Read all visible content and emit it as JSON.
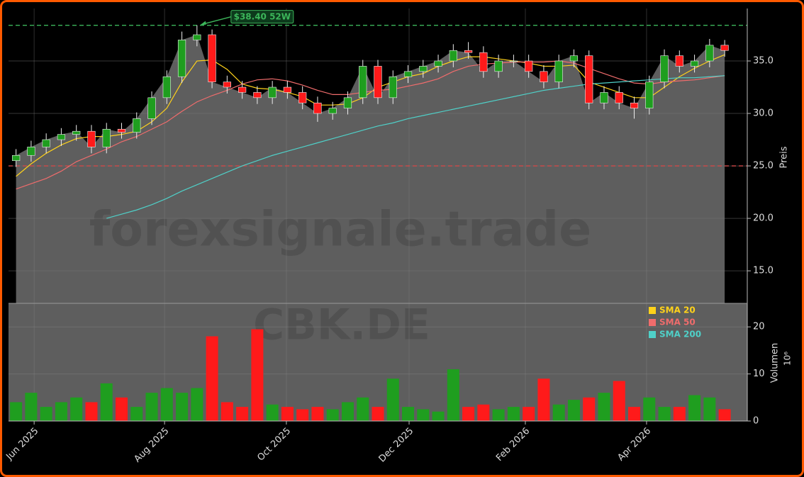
{
  "chart_data": {
    "type": "candlestick",
    "watermark": "forexsignale.trade",
    "symbol": "CBK.DE",
    "ylabel": "Preis",
    "volume_label": "Volumen",
    "volume_scale": "10⁶",
    "categories": [
      null,
      null,
      null,
      null,
      null,
      null,
      null,
      null,
      null,
      null,
      null,
      null,
      null,
      null,
      null,
      null,
      null,
      null,
      null,
      null,
      null,
      null,
      null,
      null,
      null,
      null,
      null,
      null,
      null,
      null,
      null,
      null,
      null,
      null,
      null,
      null,
      null,
      null,
      null,
      null,
      null,
      null,
      null,
      null,
      null,
      null,
      null,
      null
    ],
    "open": [
      25.5,
      26.0,
      26.8,
      27.5,
      28.0,
      28.3,
      26.8,
      28.5,
      28.2,
      29.5,
      31.5,
      33.5,
      37.0,
      37.5,
      33.0,
      32.5,
      32.0,
      31.5,
      32.5,
      32.0,
      31.0,
      30.0,
      30.5,
      31.5,
      34.5,
      31.5,
      33.5,
      34.0,
      34.5,
      35.0,
      36.0,
      35.8,
      34.0,
      35.0,
      35.0,
      34.0,
      33.0,
      35.0,
      35.5,
      31.0,
      32.0,
      31.0,
      30.5,
      33.0,
      35.5,
      34.5,
      35.0,
      36.5
    ],
    "high": [
      26.6,
      27.4,
      28.1,
      28.6,
      28.9,
      28.9,
      29.1,
      29.1,
      30.1,
      32.1,
      34.1,
      37.8,
      38.4,
      38.0,
      33.6,
      33.1,
      32.6,
      33.1,
      33.1,
      32.6,
      31.6,
      31.1,
      32.1,
      35.1,
      35.1,
      34.1,
      34.6,
      35.1,
      35.6,
      36.6,
      36.8,
      36.4,
      35.6,
      35.6,
      35.6,
      34.6,
      35.6,
      36.1,
      36.0,
      32.6,
      32.6,
      31.6,
      33.6,
      36.1,
      36.0,
      35.6,
      37.1,
      37.0
    ],
    "low": [
      24.9,
      25.4,
      26.2,
      26.9,
      27.4,
      26.2,
      26.2,
      27.6,
      27.6,
      28.9,
      30.9,
      32.9,
      36.4,
      32.4,
      31.9,
      31.4,
      30.9,
      30.9,
      31.4,
      30.4,
      29.2,
      29.4,
      29.9,
      30.9,
      30.9,
      30.9,
      32.9,
      33.4,
      33.9,
      34.4,
      35.2,
      33.4,
      33.4,
      34.4,
      33.4,
      32.4,
      32.4,
      34.4,
      30.4,
      30.4,
      30.4,
      29.5,
      29.9,
      32.4,
      33.9,
      33.9,
      34.4,
      35.4
    ],
    "close": [
      26.0,
      26.8,
      27.5,
      28.0,
      28.3,
      26.8,
      28.5,
      28.2,
      29.5,
      31.5,
      33.5,
      37.0,
      37.5,
      33.0,
      32.5,
      32.0,
      31.5,
      32.5,
      32.0,
      31.0,
      30.0,
      30.5,
      31.5,
      34.5,
      31.5,
      33.5,
      34.0,
      34.5,
      35.0,
      36.0,
      35.8,
      34.0,
      35.0,
      35.0,
      34.0,
      33.0,
      35.0,
      35.5,
      31.0,
      32.0,
      31.0,
      30.5,
      33.0,
      35.5,
      34.5,
      35.0,
      36.5,
      36.0
    ],
    "volume": [
      4,
      6,
      3,
      4,
      5,
      4,
      8,
      5,
      3,
      6,
      7,
      6,
      7,
      18,
      4,
      3,
      19.5,
      3.5,
      3,
      2.5,
      3,
      2.5,
      4,
      5,
      3,
      9,
      3,
      2.5,
      2,
      11,
      3,
      3.5,
      2.5,
      3,
      3,
      9,
      3.5,
      4.5,
      5,
      6,
      8.5,
      3,
      5,
      3,
      3,
      5.5,
      5,
      2.5
    ],
    "up_color": "#1f9e1f",
    "down_color": "#ff1a1a",
    "area_color": "#5e5e5e",
    "overlays": [
      {
        "name": "SMA 20",
        "color": "#ffd21a",
        "values": [
          24.0,
          25.2,
          26.2,
          27.0,
          27.6,
          27.8,
          27.8,
          28.0,
          28.3,
          29.2,
          30.5,
          33.0,
          35.0,
          35.1,
          34.2,
          32.8,
          32.4,
          32.3,
          32.0,
          31.6,
          30.8,
          30.8,
          30.9,
          31.5,
          32.5,
          33.0,
          33.5,
          33.8,
          34.5,
          35.0,
          35.4,
          35.4,
          35.2,
          35.0,
          34.8,
          34.5,
          34.5,
          34.6,
          33.0,
          32.5,
          32.0,
          31.5,
          31.5,
          32.5,
          33.5,
          34.3,
          35.0,
          35.6
        ]
      },
      {
        "name": "SMA 50",
        "color": "#f06c6c",
        "values": [
          22.8,
          23.3,
          23.8,
          24.5,
          25.4,
          26.0,
          26.6,
          27.3,
          27.8,
          28.5,
          29.2,
          30.2,
          31.1,
          31.7,
          32.2,
          32.8,
          33.2,
          33.3,
          33.1,
          32.7,
          32.2,
          31.8,
          31.8,
          32.0,
          32.2,
          32.3,
          32.6,
          32.9,
          33.3,
          34.0,
          34.5,
          34.7,
          34.8,
          34.9,
          34.9,
          34.9,
          35.0,
          34.8,
          34.3,
          33.8,
          33.3,
          32.9,
          32.8,
          33.0,
          33.1,
          33.2,
          33.4,
          33.6
        ]
      },
      {
        "name": "SMA 200",
        "color": "#4fd0c8",
        "values": [
          null,
          null,
          null,
          null,
          null,
          null,
          20.0,
          20.4,
          20.8,
          21.3,
          21.9,
          22.6,
          23.2,
          23.8,
          24.4,
          25.0,
          25.5,
          26.0,
          26.4,
          26.8,
          27.2,
          27.6,
          28.0,
          28.4,
          28.8,
          29.1,
          29.5,
          29.8,
          30.1,
          30.4,
          30.7,
          31.0,
          31.3,
          31.6,
          31.9,
          32.2,
          32.4,
          32.6,
          32.8,
          32.9,
          33.0,
          33.1,
          33.2,
          33.3,
          33.4,
          33.4,
          33.5,
          33.6
        ]
      }
    ],
    "high_line": {
      "value": 38.4,
      "label": "$38.40 52W",
      "color": "#3cb55a"
    },
    "low_line": {
      "value": 25.0,
      "color": "#d04848"
    },
    "xlim": [
      -0.5,
      48.5
    ],
    "xticks": [
      {
        "value": 1.2,
        "label": "Jun 2025"
      },
      {
        "value": 9.85,
        "label": "Aug 2025"
      },
      {
        "value": 17.93,
        "label": "Oct 2025"
      },
      {
        "value": 26.07,
        "label": "Dec 2025"
      },
      {
        "value": 33.78,
        "label": "Feb 2026"
      },
      {
        "value": 41.82,
        "label": "Apr 2026"
      }
    ],
    "ylim": [
      11.9,
      40.0
    ],
    "yticks": [
      {
        "value": 15,
        "label": "15.0"
      },
      {
        "value": 20,
        "label": "20.0"
      },
      {
        "value": 25,
        "label": "25.0"
      },
      {
        "value": 30,
        "label": "30.0"
      },
      {
        "value": 35,
        "label": "35.0"
      }
    ],
    "volume_ylim": [
      0,
      25
    ],
    "volume_yticks": [
      0,
      10,
      20
    ],
    "grid": true
  }
}
